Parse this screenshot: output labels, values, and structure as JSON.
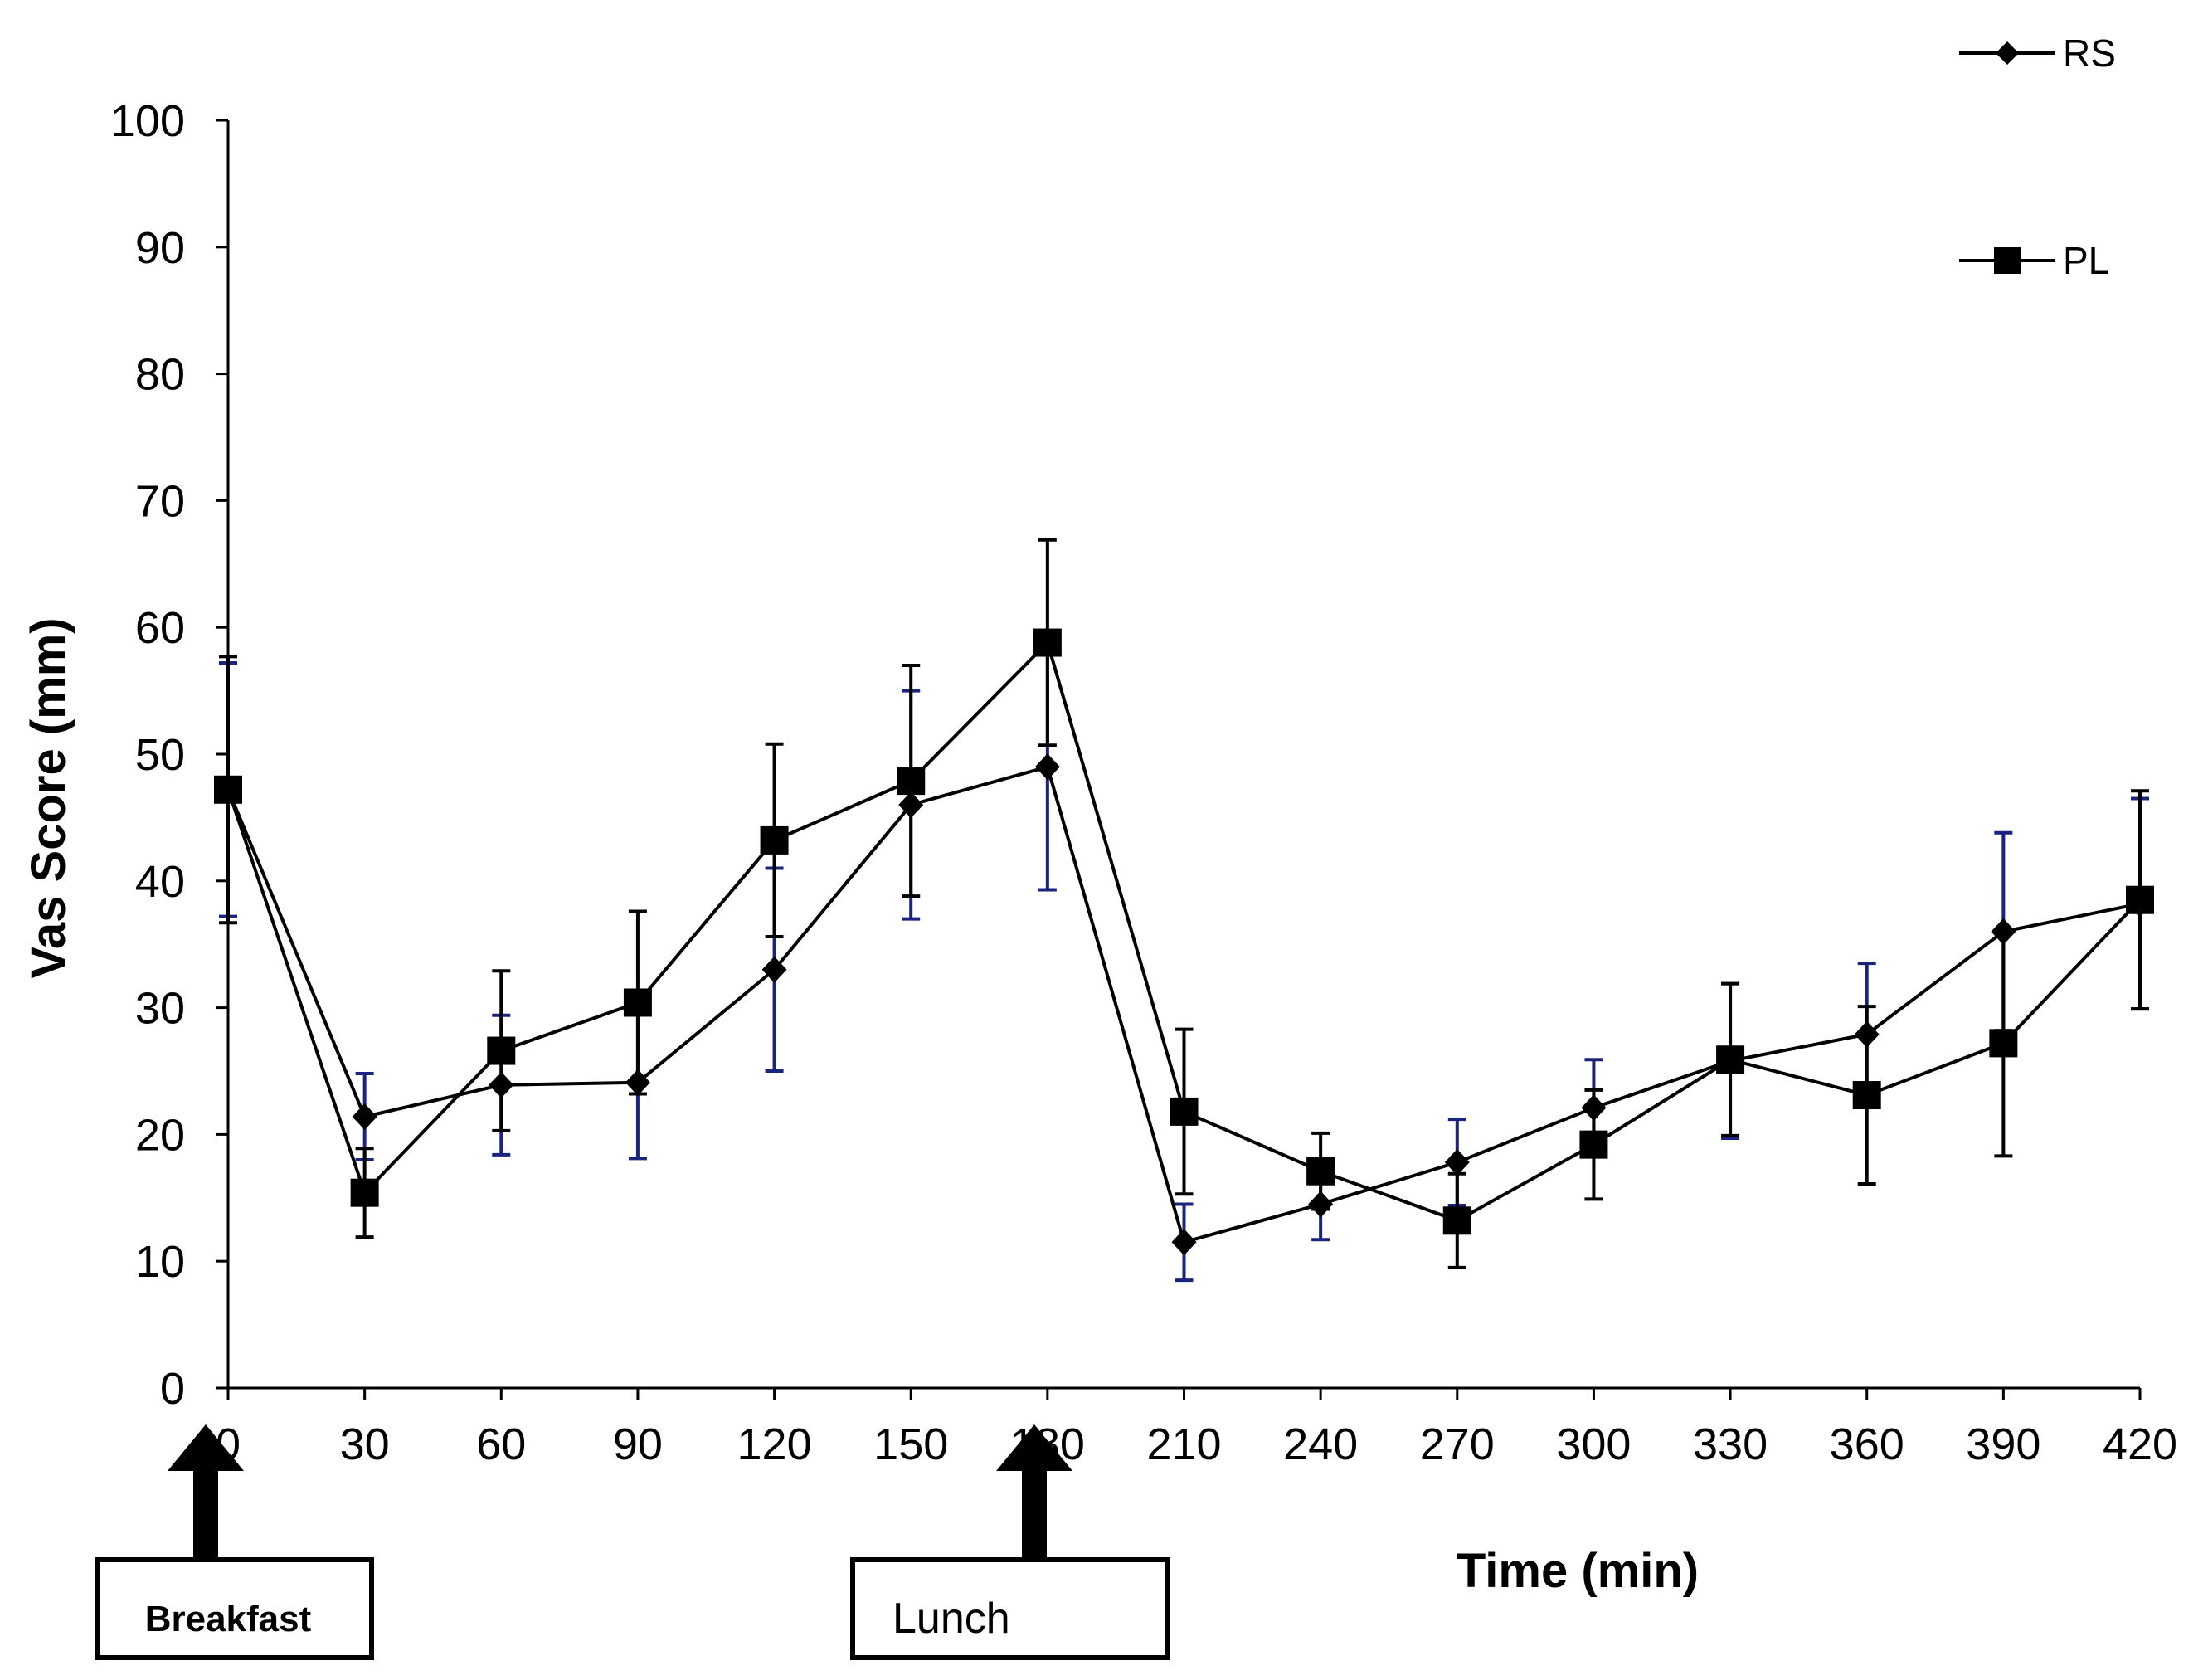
{
  "chart_data": {
    "type": "line",
    "title": "",
    "xlabel": "Time (min)",
    "ylabel": "Vas Score (mm)",
    "x": [
      0,
      30,
      60,
      90,
      120,
      150,
      180,
      210,
      240,
      270,
      300,
      330,
      360,
      390,
      420
    ],
    "xlim": [
      0,
      420
    ],
    "ylim": [
      0,
      100
    ],
    "yticks": [
      0,
      10,
      20,
      30,
      40,
      50,
      60,
      70,
      80,
      90,
      100
    ],
    "grid": false,
    "legend_position": "top-right",
    "series": [
      {
        "name": "RS",
        "marker": "diamond",
        "values": [
          47.2,
          21.4,
          23.9,
          24.1,
          33.0,
          46.0,
          49.0,
          11.5,
          14.5,
          17.8,
          22.1,
          25.8,
          27.9,
          36.0,
          38.2
        ],
        "errors": [
          10.0,
          3.4,
          5.5,
          6.0,
          8.0,
          9.0,
          9.7,
          3.0,
          2.8,
          3.4,
          3.8,
          6.1,
          5.6,
          7.8,
          8.3
        ],
        "error_bar_color": "#1a237e"
      },
      {
        "name": "PL",
        "marker": "square",
        "values": [
          47.2,
          15.4,
          26.6,
          30.4,
          43.2,
          47.9,
          58.8,
          21.8,
          17.1,
          13.2,
          19.2,
          25.9,
          23.1,
          27.2,
          38.5
        ],
        "errors": [
          10.5,
          3.5,
          6.3,
          7.2,
          7.6,
          9.1,
          8.1,
          6.5,
          3.0,
          3.7,
          4.3,
          6.0,
          7.0,
          8.9,
          8.6
        ],
        "error_bar_color": "#000000"
      }
    ],
    "annotations": [
      {
        "label": "Breakfast",
        "x": 0
      },
      {
        "label": "Lunch",
        "x": 180
      }
    ]
  }
}
